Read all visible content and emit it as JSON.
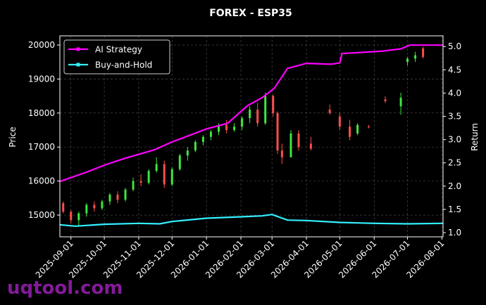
{
  "chart_data": {
    "type": "candlestick",
    "title": "FOREX - ESP35",
    "ylabel": "Price",
    "y2label": "Return",
    "watermark": "uqtool.com",
    "xlim": [
      "2025-08-22",
      "2026-08-02"
    ],
    "xticks": [
      "2025-09-01",
      "2025-10-01",
      "2025-11-01",
      "2025-12-01",
      "2026-01-01",
      "2026-02-01",
      "2026-03-01",
      "2026-04-01",
      "2026-05-01",
      "2026-06-01",
      "2026-07-01",
      "2026-08-01"
    ],
    "ylim": [
      14360,
      20270
    ],
    "yticks": [
      15000,
      16000,
      17000,
      18000,
      19000,
      20000
    ],
    "y2lim": [
      0.91,
      5.23
    ],
    "y2ticks": [
      {
        "value": 1,
        "label": "1.0"
      },
      1.5,
      {
        "value": 2,
        "label": "2.0"
      },
      2.5,
      {
        "value": 3,
        "label": "3.0"
      },
      3.5,
      {
        "value": 4,
        "label": "4.0"
      },
      4.5,
      {
        "value": 5,
        "label": "5.0"
      }
    ],
    "grid": true,
    "legend": "upper left",
    "up_color": "#3ee63e",
    "down_color": "#ff4d4d",
    "candles": {
      "x": [
        "2025-08-25",
        "2025-09-01",
        "2025-09-08",
        "2025-09-15",
        "2025-09-22",
        "2025-09-29",
        "2025-10-06",
        "2025-10-13",
        "2025-10-20",
        "2025-10-27",
        "2025-11-03",
        "2025-11-10",
        "2025-11-17",
        "2025-11-24",
        "2025-12-01",
        "2025-12-08",
        "2025-12-15",
        "2025-12-22",
        "2025-12-29",
        "2026-01-05",
        "2026-01-12",
        "2026-01-19",
        "2026-01-26",
        "2026-02-02",
        "2026-02-09",
        "2026-02-16",
        "2026-02-23",
        "2026-03-02",
        "2026-03-06",
        "2026-03-10",
        "2026-03-18",
        "2026-03-25",
        "2026-04-05",
        "2026-04-22",
        "2026-05-01",
        "2026-05-10",
        "2026-05-17",
        "2026-05-27",
        "2026-06-11",
        "2026-06-25",
        "2026-07-01",
        "2026-07-08",
        "2026-07-15"
      ],
      "open": [
        15350,
        15100,
        14850,
        15050,
        15300,
        15200,
        15400,
        15600,
        15450,
        15750,
        16000,
        15950,
        16300,
        16500,
        15900,
        16350,
        16750,
        16900,
        17150,
        17300,
        17450,
        17650,
        17500,
        17600,
        17850,
        18100,
        17700,
        18500,
        18000,
        16900,
        16700,
        17400,
        17100,
        18100,
        17900,
        17600,
        17400,
        17600,
        18400,
        18200,
        19500,
        19600,
        19900
      ],
      "high": [
        15400,
        15150,
        15100,
        15350,
        15400,
        15450,
        15650,
        15700,
        15800,
        16100,
        16200,
        16350,
        16700,
        16600,
        16400,
        16800,
        17000,
        17200,
        17350,
        17500,
        17700,
        17800,
        17700,
        17900,
        18200,
        18300,
        18600,
        18550,
        18050,
        17100,
        17500,
        17500,
        17300,
        18250,
        18000,
        17800,
        17700,
        17650,
        18500,
        18600,
        19650,
        19800,
        19950
      ],
      "low": [
        15050,
        14750,
        14700,
        14950,
        15100,
        15150,
        15300,
        15350,
        15400,
        15700,
        15850,
        15900,
        16250,
        15800,
        15850,
        16300,
        16600,
        16850,
        17050,
        17200,
        17350,
        17400,
        17450,
        17500,
        17700,
        17600,
        17650,
        17900,
        16800,
        16500,
        16700,
        16900,
        16900,
        17950,
        17500,
        17200,
        17350,
        17550,
        18300,
        17950,
        19400,
        19500,
        19600
      ],
      "close": [
        15100,
        14850,
        15050,
        15300,
        15200,
        15400,
        15600,
        15450,
        15750,
        16000,
        15950,
        16300,
        16500,
        15900,
        16350,
        16750,
        16900,
        17150,
        17300,
        17450,
        17650,
        17500,
        17600,
        17850,
        18100,
        17700,
        18500,
        18000,
        16900,
        16700,
        17400,
        17000,
        16950,
        18000,
        17600,
        17300,
        17650,
        17580,
        18350,
        18450,
        19600,
        19700,
        19650
      ]
    },
    "series": [
      {
        "name": "AI Strategy",
        "color": "#ff00ff",
        "axis": "y2",
        "x": [
          "2025-08-22",
          "2025-09-15",
          "2025-10-01",
          "2025-10-20",
          "2025-11-15",
          "2025-12-01",
          "2025-12-20",
          "2026-01-01",
          "2026-01-20",
          "2026-02-07",
          "2026-02-20",
          "2026-03-03",
          "2026-03-15",
          "2026-04-01",
          "2026-04-23",
          "2026-05-01",
          "2026-05-03",
          "2026-06-08",
          "2026-06-25",
          "2026-07-03",
          "2026-08-02"
        ],
        "values": [
          2.1,
          2.3,
          2.45,
          2.6,
          2.78,
          2.95,
          3.12,
          3.23,
          3.35,
          3.73,
          3.9,
          4.1,
          4.53,
          4.64,
          4.62,
          4.65,
          4.85,
          4.9,
          4.95,
          5.03,
          5.03
        ]
      },
      {
        "name": "Buy-and-Hold",
        "color": "#33f0ff",
        "axis": "y2",
        "x": [
          "2025-08-22",
          "2025-09-05",
          "2025-10-01",
          "2025-11-01",
          "2025-11-20",
          "2025-12-01",
          "2026-01-01",
          "2026-02-01",
          "2026-02-20",
          "2026-03-01",
          "2026-03-15",
          "2026-04-01",
          "2026-05-01",
          "2026-06-01",
          "2026-07-01",
          "2026-08-02"
        ],
        "values": [
          1.17,
          1.14,
          1.18,
          1.2,
          1.19,
          1.24,
          1.31,
          1.34,
          1.36,
          1.39,
          1.27,
          1.26,
          1.22,
          1.2,
          1.19,
          1.2
        ]
      }
    ]
  }
}
